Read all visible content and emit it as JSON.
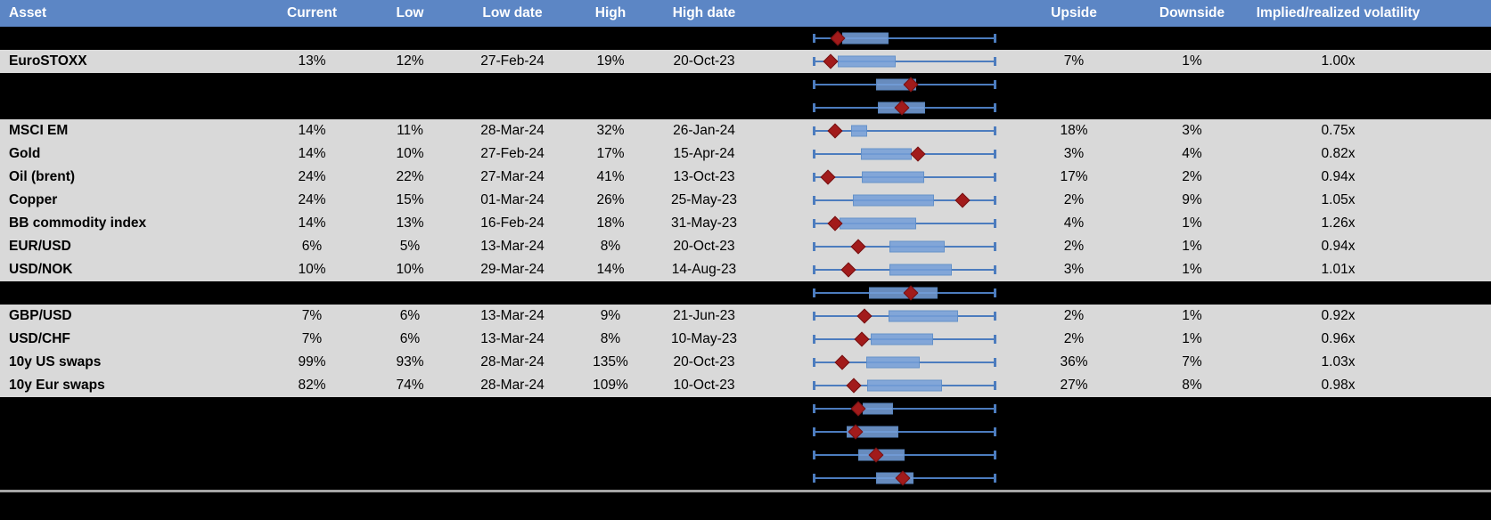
{
  "title": "Asset implied volatility ranges table with box-and-whisker chart",
  "colors": {
    "header_bg": "#5C86C5",
    "header_text": "#FFFFFF",
    "data_row_bg": "#D9D9D9",
    "hidden_row_bg": "#000000",
    "whisker_blue": "#4C7CBE",
    "box_fill_blue": "#759ED7",
    "diamond_red": "#A21B1B",
    "separator_gray": "#A6A6A6"
  },
  "chart_data": {
    "type": "table",
    "embedded_chart_type": "boxplot-with-marker",
    "columns": [
      "Asset",
      "Current",
      "Low",
      "Low date",
      "High",
      "High date",
      "",
      "Upside",
      "Downside",
      "Implied/realized volatility"
    ],
    "layout_hints": {
      "whiskers": "every row's whisker spans the full normalized low-high range (0-100%)",
      "box": "box_start_pct / box_end_pct are percent of whisker span",
      "marker": "red diamond at diamond_pct percent of whisker span",
      "legend": "none",
      "grid": "off"
    },
    "rows": [
      {
        "hidden": true,
        "box": {
          "box_start_pct": 15.7,
          "box_end_pct": 41.2,
          "diamond_pct": 13.2
        }
      },
      {
        "hidden": false,
        "asset": "EuroSTOXX",
        "current": "13%",
        "low": "12%",
        "low_date": "27-Feb-24",
        "high": "19%",
        "high_date": "20-Oct-23",
        "upside": "7%",
        "downside": "1%",
        "vol": "1.00x",
        "box": {
          "box_start_pct": 13.2,
          "box_end_pct": 45.1,
          "diamond_pct": 9.3
        }
      },
      {
        "hidden": true,
        "box": {
          "box_start_pct": 34.3,
          "box_end_pct": 56.4,
          "diamond_pct": 53.4
        }
      },
      {
        "hidden": true,
        "box": {
          "box_start_pct": 35.3,
          "box_end_pct": 61.3,
          "diamond_pct": 48.5
        }
      },
      {
        "hidden": false,
        "asset": "MSCI EM",
        "current": "14%",
        "low": "11%",
        "low_date": "28-Mar-24",
        "high": "32%",
        "high_date": "26-Jan-24",
        "upside": "18%",
        "downside": "3%",
        "vol": "0.75x",
        "box": {
          "box_start_pct": 20.6,
          "box_end_pct": 29.4,
          "diamond_pct": 11.8
        }
      },
      {
        "hidden": false,
        "asset": "Gold",
        "current": "14%",
        "low": "10%",
        "low_date": "27-Feb-24",
        "high": "17%",
        "high_date": "15-Apr-24",
        "upside": "3%",
        "downside": "4%",
        "vol": "0.82x",
        "box": {
          "box_start_pct": 26.0,
          "box_end_pct": 53.9,
          "diamond_pct": 57.4
        }
      },
      {
        "hidden": false,
        "asset": "Oil (brent)",
        "current": "24%",
        "low": "22%",
        "low_date": "27-Mar-24",
        "high": "41%",
        "high_date": "13-Oct-23",
        "upside": "17%",
        "downside": "2%",
        "vol": "0.94x",
        "box": {
          "box_start_pct": 26.5,
          "box_end_pct": 60.8,
          "diamond_pct": 7.8
        }
      },
      {
        "hidden": false,
        "asset": "Copper",
        "current": "24%",
        "low": "15%",
        "low_date": "01-Mar-24",
        "high": "26%",
        "high_date": "25-May-23",
        "upside": "2%",
        "downside": "9%",
        "vol": "1.05x",
        "box": {
          "box_start_pct": 21.6,
          "box_end_pct": 66.2,
          "diamond_pct": 81.9
        }
      },
      {
        "hidden": false,
        "asset": "BB commodity index",
        "current": "14%",
        "low": "13%",
        "low_date": "16-Feb-24",
        "high": "18%",
        "high_date": "31-May-23",
        "upside": "4%",
        "downside": "1%",
        "vol": "1.26x",
        "box": {
          "box_start_pct": 14.2,
          "box_end_pct": 56.4,
          "diamond_pct": 11.8
        }
      },
      {
        "hidden": false,
        "asset": "EUR/USD",
        "current": "6%",
        "low": "5%",
        "low_date": "13-Mar-24",
        "high": "8%",
        "high_date": "20-Oct-23",
        "upside": "2%",
        "downside": "1%",
        "vol": "0.94x",
        "box": {
          "box_start_pct": 41.7,
          "box_end_pct": 72.1,
          "diamond_pct": 24.5
        }
      },
      {
        "hidden": false,
        "asset": "USD/NOK",
        "current": "10%",
        "low": "10%",
        "low_date": "29-Mar-24",
        "high": "14%",
        "high_date": "14-Aug-23",
        "upside": "3%",
        "downside": "1%",
        "vol": "1.01x",
        "box": {
          "box_start_pct": 41.7,
          "box_end_pct": 76.0,
          "diamond_pct": 19.1
        }
      },
      {
        "hidden": true,
        "box": {
          "box_start_pct": 30.4,
          "box_end_pct": 68.1,
          "diamond_pct": 53.4
        }
      },
      {
        "hidden": false,
        "asset": "GBP/USD",
        "current": "7%",
        "low": "6%",
        "low_date": "13-Mar-24",
        "high": "9%",
        "high_date": "21-Jun-23",
        "upside": "2%",
        "downside": "1%",
        "vol": "0.92x",
        "box": {
          "box_start_pct": 41.2,
          "box_end_pct": 79.4,
          "diamond_pct": 27.9
        }
      },
      {
        "hidden": false,
        "asset": "USD/CHF",
        "current": "7%",
        "low": "6%",
        "low_date": "13-Mar-24",
        "high": "8%",
        "high_date": "10-May-23",
        "upside": "2%",
        "downside": "1%",
        "vol": "0.96x",
        "box": {
          "box_start_pct": 31.4,
          "box_end_pct": 65.7,
          "diamond_pct": 26.5
        }
      },
      {
        "hidden": false,
        "asset": "10y US swaps",
        "current": "99%",
        "low": "93%",
        "low_date": "28-Mar-24",
        "high": "135%",
        "high_date": "20-Oct-23",
        "upside": "36%",
        "downside": "7%",
        "vol": "1.03x",
        "box": {
          "box_start_pct": 28.9,
          "box_end_pct": 58.3,
          "diamond_pct": 15.7
        }
      },
      {
        "hidden": false,
        "asset": "10y Eur swaps",
        "current": "82%",
        "low": "74%",
        "low_date": "28-Mar-24",
        "high": "109%",
        "high_date": "10-Oct-23",
        "upside": "27%",
        "downside": "8%",
        "vol": "0.98x",
        "box": {
          "box_start_pct": 29.4,
          "box_end_pct": 70.6,
          "diamond_pct": 22.1
        }
      },
      {
        "hidden": true,
        "box": {
          "box_start_pct": 27.0,
          "box_end_pct": 43.6,
          "diamond_pct": 24.5
        }
      },
      {
        "hidden": true,
        "box": {
          "box_start_pct": 18.1,
          "box_end_pct": 46.6,
          "diamond_pct": 23.0
        }
      },
      {
        "hidden": true,
        "box": {
          "box_start_pct": 24.5,
          "box_end_pct": 50.0,
          "diamond_pct": 34.3
        }
      },
      {
        "hidden": true,
        "box": {
          "box_start_pct": 34.3,
          "box_end_pct": 54.9,
          "diamond_pct": 49.0
        }
      }
    ]
  }
}
